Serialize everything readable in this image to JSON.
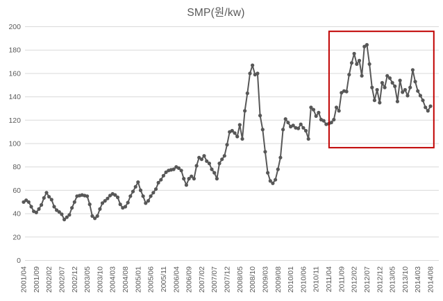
{
  "title": "SMP(원/kw)",
  "chart_data": {
    "type": "line",
    "title": "SMP(원/kw)",
    "xlabel": "",
    "ylabel": "",
    "ylim": [
      0,
      200
    ],
    "ytick_interval": 20,
    "ytick_labels": [
      "0",
      "20",
      "40",
      "60",
      "80",
      "100",
      "120",
      "140",
      "160",
      "180",
      "200"
    ],
    "grid": "horizontal",
    "legend": "none",
    "x_tick_every": 5,
    "x_tick_labels": [
      "2001/04",
      "2001/09",
      "2002/02",
      "2002/07",
      "2002/12",
      "2003/05",
      "2003/10",
      "2004/03",
      "2004/08",
      "2005/01",
      "2005/06",
      "2005/11",
      "2006/04",
      "2006/09",
      "2007/02",
      "2007/07",
      "2007/12",
      "2008/05",
      "2008/10",
      "2009/03",
      "2009/08",
      "2010/01",
      "2010/06",
      "2010/11",
      "2011/04",
      "2011/09",
      "2012/02",
      "2012/07",
      "2012/12",
      "2013/05",
      "2013/10",
      "2014/03",
      "2014/08"
    ],
    "series": [
      {
        "name": "SMP",
        "marker": "circle",
        "values": [
          50,
          51.5,
          50,
          46,
          42,
          41,
          44,
          47.5,
          53.5,
          58,
          54.5,
          52,
          46,
          43,
          41.5,
          39.5,
          35,
          37,
          39,
          45,
          50,
          55,
          55.5,
          56,
          55.5,
          55,
          48,
          38,
          36,
          38,
          44,
          49,
          51,
          53,
          55.5,
          57,
          56,
          54,
          48,
          45,
          46,
          49.5,
          55,
          59,
          63,
          67,
          60,
          55,
          49,
          51,
          55,
          58,
          61,
          66.5,
          69,
          72.5,
          75.5,
          77,
          77.5,
          78,
          80,
          79,
          77,
          70,
          64.5,
          70,
          72,
          70,
          81,
          88,
          86.5,
          89.5,
          85,
          83,
          78,
          75,
          70,
          83,
          86.5,
          89.5,
          99,
          110,
          111,
          109,
          106,
          116,
          104,
          128,
          143,
          160,
          167,
          159,
          160,
          124,
          112,
          93,
          75,
          68,
          66,
          69,
          78,
          88,
          112,
          121,
          118,
          114.5,
          115.5,
          113.5,
          113,
          116.5,
          113.5,
          111,
          104,
          131,
          129,
          123.5,
          126.5,
          120.5,
          119.5,
          116.5,
          117,
          118,
          120.5,
          131,
          128,
          143.5,
          145,
          144.5,
          159,
          169,
          177,
          168,
          171,
          158,
          183,
          184.5,
          168,
          148,
          137,
          146,
          135,
          152,
          148,
          158,
          156,
          152,
          149,
          136,
          154,
          144,
          146,
          141,
          148,
          163,
          153,
          145,
          141,
          137,
          131,
          128,
          132
        ]
      }
    ],
    "highlight_box": {
      "start_index": 120.1,
      "end_index": 161.3,
      "value_min": 96.5,
      "value_max": 196,
      "color": "#c00000"
    },
    "colors": {
      "line": "#575757",
      "marker": "#575757",
      "gridline": "#d9d9d9",
      "axis_label": "#595959",
      "title": "#595959",
      "background": "#ffffff"
    }
  }
}
